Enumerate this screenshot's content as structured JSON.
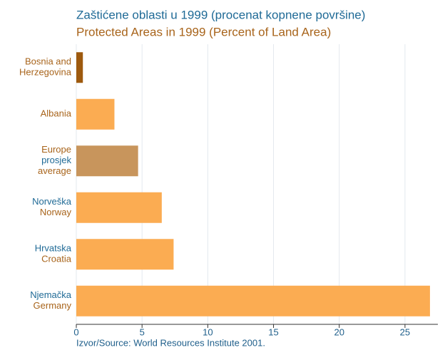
{
  "chart_data": {
    "type": "barh",
    "title": "Zaštićene oblasti u 1999 (procenat kopnene površine)",
    "title_color": "#1f6a96",
    "subtitle": "Protected Areas in 1999 (Percent of Land Area)",
    "subtitle_color": "#a8641b",
    "categories": [
      [
        {
          "text": "Bosnia and",
          "color": "#a8641b"
        },
        {
          "text": "Herzegovina",
          "color": "#a8641b"
        }
      ],
      [
        {
          "text": "Albania",
          "color": "#a8641b"
        }
      ],
      [
        {
          "text": "Europe",
          "color": "#a8641b"
        },
        {
          "text": "prosjek",
          "color": "#1f6a96"
        },
        {
          "text": "average",
          "color": "#a8641b"
        }
      ],
      [
        {
          "text": "Norveška",
          "color": "#1f6a96"
        },
        {
          "text": "Norway",
          "color": "#a8641b"
        }
      ],
      [
        {
          "text": "Hrvatska",
          "color": "#1f6a96"
        },
        {
          "text": "Croatia",
          "color": "#a8641b"
        }
      ],
      [
        {
          "text": "Njemačka",
          "color": "#1f6a96"
        },
        {
          "text": "Germany",
          "color": "#a8641b"
        }
      ]
    ],
    "values": [
      0.5,
      2.9,
      4.7,
      6.5,
      7.4,
      26.9
    ],
    "colors": [
      "#9e5a0e",
      "#fbac52",
      "#c8955c",
      "#fbac52",
      "#fbac52",
      "#fbac52"
    ],
    "xlim": [
      0,
      27.5
    ],
    "xticks": [
      0,
      5,
      10,
      15,
      20,
      25
    ],
    "grid": true,
    "source": "Izvor/Source: World Resources Institute 2001."
  }
}
